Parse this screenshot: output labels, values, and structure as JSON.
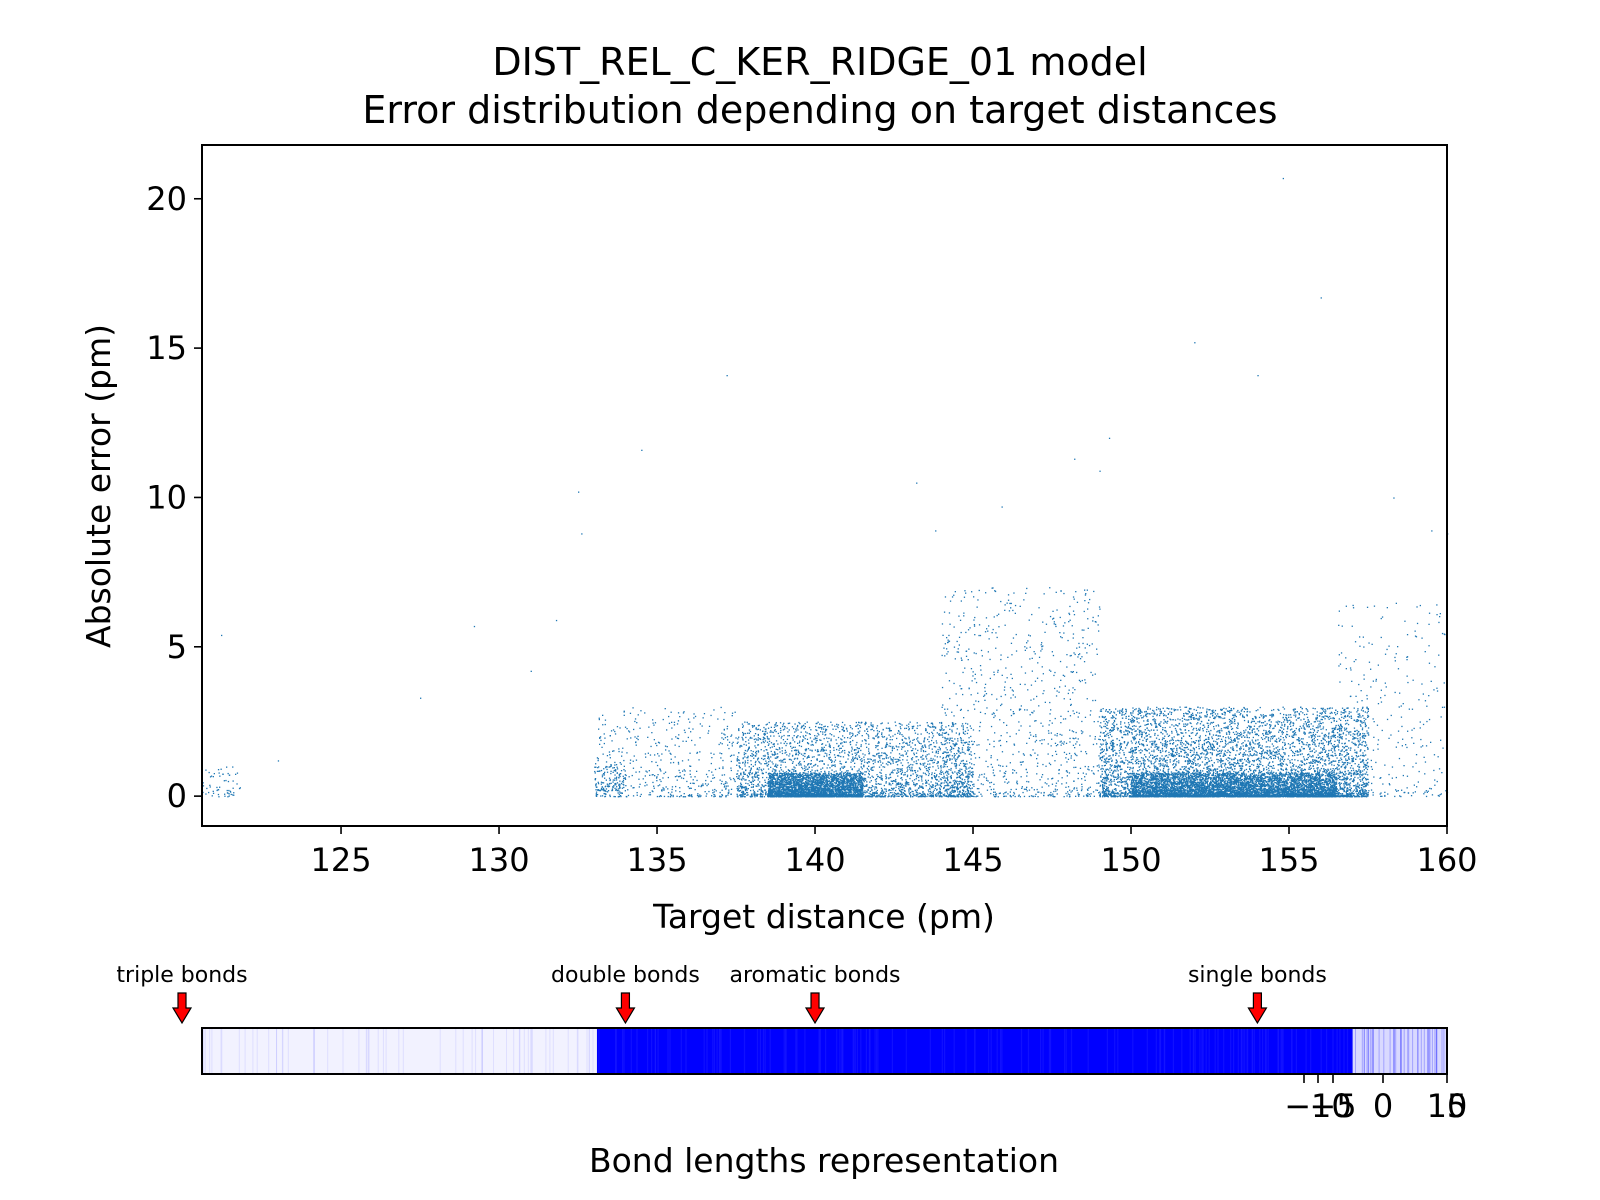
{
  "chart_data": [
    {
      "type": "scatter",
      "title_line1": "DIST_REL_C_KER_RIDGE_01 model",
      "title_line2": "Error distribution depending on target distances",
      "xlabel": "Target distance (pm)",
      "ylabel": "Absolute error (pm)",
      "xlim": [
        120.6,
        160
      ],
      "ylim": [
        -1,
        21.8
      ],
      "xticks": [
        125,
        130,
        135,
        140,
        145,
        150,
        155,
        160
      ],
      "yticks": [
        0,
        5,
        10,
        15,
        20
      ],
      "point_color": "#1f77b4",
      "grid": false,
      "clusters": [
        {
          "x_range": [
            120.6,
            121.8
          ],
          "y_range": [
            0,
            1.0
          ],
          "count": 60
        },
        {
          "x_range": [
            133.0,
            134.0
          ],
          "y_range": [
            0.2,
            1.0
          ],
          "count": 120
        },
        {
          "x_range": [
            133.0,
            137.5
          ],
          "y_range": [
            0,
            3.0
          ],
          "count": 500
        },
        {
          "x_range": [
            137.5,
            145.0
          ],
          "y_range": [
            0,
            2.5
          ],
          "count": 3000
        },
        {
          "x_range": [
            138.5,
            141.5
          ],
          "y_range": [
            0,
            0.8
          ],
          "count": 2500
        },
        {
          "x_range": [
            144.0,
            149.0
          ],
          "y_range": [
            0,
            7.0
          ],
          "count": 900
        },
        {
          "x_range": [
            149.0,
            157.5
          ],
          "y_range": [
            0,
            3.0
          ],
          "count": 6000
        },
        {
          "x_range": [
            150.0,
            156.5
          ],
          "y_range": [
            0,
            0.8
          ],
          "count": 4000
        },
        {
          "x_range": [
            156.5,
            160.0
          ],
          "y_range": [
            0,
            6.5
          ],
          "count": 300
        }
      ],
      "outliers": [
        [
          121.2,
          5.4
        ],
        [
          123.0,
          1.2
        ],
        [
          127.5,
          3.3
        ],
        [
          129.2,
          5.7
        ],
        [
          131.0,
          4.2
        ],
        [
          131.8,
          5.9
        ],
        [
          132.5,
          10.2
        ],
        [
          132.6,
          8.8
        ],
        [
          134.5,
          11.6
        ],
        [
          137.2,
          14.1
        ],
        [
          143.2,
          10.5
        ],
        [
          143.8,
          8.9
        ],
        [
          145.9,
          9.7
        ],
        [
          148.2,
          11.3
        ],
        [
          149.0,
          10.9
        ],
        [
          149.3,
          12.0
        ],
        [
          152.0,
          15.2
        ],
        [
          154.0,
          14.1
        ],
        [
          154.8,
          20.7
        ],
        [
          156.0,
          16.7
        ],
        [
          158.3,
          10.0
        ],
        [
          159.5,
          8.9
        ],
        [
          160.0,
          8.8
        ]
      ]
    },
    {
      "type": "heatmap",
      "xlabel": "Bond lengths representation",
      "xticks": [
        -15,
        -10,
        -5,
        0,
        5,
        10
      ],
      "tick_labels_visible": [
        "−10",
        "−5",
        "0",
        "10",
        "5"
      ],
      "color": "#0000ff",
      "annotations": [
        {
          "label": "triple bonds",
          "x": 120.6
        },
        {
          "label": "double bonds",
          "x": 134.0
        },
        {
          "label": "aromatic bonds",
          "x": 140.0
        },
        {
          "label": "single bonds",
          "x": 154.0
        }
      ],
      "intensity_bands": [
        {
          "x_range": [
            120.6,
            133.1
          ],
          "intensity": 0.05
        },
        {
          "x_range": [
            133.1,
            157.0
          ],
          "intensity": 1.0
        },
        {
          "x_range": [
            157.0,
            160.0
          ],
          "intensity": 0.15
        }
      ]
    }
  ]
}
